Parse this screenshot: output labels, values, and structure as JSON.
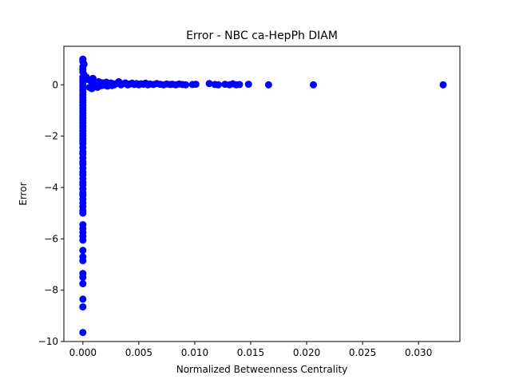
{
  "chart_data": {
    "type": "scatter",
    "title": "Error - NBC ca-HepPh DIAM",
    "xlabel": "Normalized Betweenness Centrality",
    "ylabel": "Error",
    "xlim": [
      -0.0017,
      0.0337
    ],
    "ylim": [
      -10,
      1.5
    ],
    "x_ticks": [
      {
        "value": 0.0,
        "label": "0.000"
      },
      {
        "value": 0.005,
        "label": "0.005"
      },
      {
        "value": 0.01,
        "label": "0.010"
      },
      {
        "value": 0.015,
        "label": "0.015"
      },
      {
        "value": 0.02,
        "label": "0.020"
      },
      {
        "value": 0.025,
        "label": "0.025"
      },
      {
        "value": 0.03,
        "label": "0.030"
      }
    ],
    "y_ticks": [
      {
        "value": 0,
        "label": "0"
      },
      {
        "value": -2,
        "label": "−2"
      },
      {
        "value": -4,
        "label": "−4"
      },
      {
        "value": -6,
        "label": "−6"
      },
      {
        "value": -8,
        "label": "−8"
      },
      {
        "value": -10,
        "label": "−10"
      }
    ],
    "grid": false,
    "legend": "none",
    "marker_color": "#0000ff",
    "series": [
      {
        "points": [
          [
            0.0,
            1.0
          ],
          [
            0.0,
            0.98
          ],
          [
            0.0,
            0.9
          ],
          [
            0.0001,
            0.8
          ],
          [
            0.0,
            0.7
          ],
          [
            0.0,
            0.6
          ],
          [
            0.0,
            0.5
          ],
          [
            0.0001,
            0.4
          ],
          [
            0.0,
            0.3
          ],
          [
            0.0,
            0.2
          ],
          [
            0.0,
            0.1
          ],
          [
            0.0,
            0.0
          ],
          [
            0.0,
            -0.1
          ],
          [
            0.0,
            -0.2
          ],
          [
            0.0,
            -0.3
          ],
          [
            0.0,
            -0.4
          ],
          [
            0.0,
            -0.5
          ],
          [
            0.0,
            -0.6
          ],
          [
            0.0,
            -0.7
          ],
          [
            0.0,
            -0.8
          ],
          [
            0.0,
            -0.9
          ],
          [
            0.0,
            -1.0
          ],
          [
            0.0,
            -1.1
          ],
          [
            0.0,
            -1.2
          ],
          [
            0.0,
            -1.3
          ],
          [
            0.0,
            -1.4
          ],
          [
            0.0,
            -1.5
          ],
          [
            0.0,
            -1.6
          ],
          [
            0.0,
            -1.7
          ],
          [
            0.0,
            -1.8
          ],
          [
            0.0,
            -1.9
          ],
          [
            0.0,
            -2.0
          ],
          [
            0.0,
            -2.1
          ],
          [
            0.0,
            -2.2
          ],
          [
            0.0,
            -2.3
          ],
          [
            0.0,
            -2.45
          ],
          [
            0.0,
            -2.6
          ],
          [
            0.0,
            -2.7
          ],
          [
            0.0,
            -2.85
          ],
          [
            0.0,
            -3.0
          ],
          [
            0.0,
            -3.1
          ],
          [
            0.0,
            -3.25
          ],
          [
            0.0,
            -3.4
          ],
          [
            0.0,
            -3.5
          ],
          [
            0.0,
            -3.65
          ],
          [
            0.0,
            -3.8
          ],
          [
            0.0,
            -3.9
          ],
          [
            0.0,
            -4.05
          ],
          [
            0.0,
            -4.2
          ],
          [
            0.0,
            -4.3
          ],
          [
            0.0,
            -4.45
          ],
          [
            0.0,
            -4.6
          ],
          [
            0.0,
            -4.75
          ],
          [
            0.0,
            -4.9
          ],
          [
            0.0,
            -5.0
          ],
          [
            0.0,
            -5.45
          ],
          [
            0.0,
            -5.6
          ],
          [
            0.0,
            -5.75
          ],
          [
            0.0,
            -5.9
          ],
          [
            0.0,
            -6.05
          ],
          [
            0.0,
            -6.45
          ],
          [
            0.0,
            -6.7
          ],
          [
            0.0,
            -6.85
          ],
          [
            0.0,
            -7.35
          ],
          [
            0.0,
            -7.5
          ],
          [
            0.0,
            -7.75
          ],
          [
            0.0,
            -8.35
          ],
          [
            0.0,
            -8.65
          ],
          [
            0.0,
            -9.65
          ],
          [
            0.0003,
            0.3
          ],
          [
            0.0005,
            0.2
          ],
          [
            0.0006,
            -0.1
          ],
          [
            0.0007,
            0.15
          ],
          [
            0.0008,
            -0.15
          ],
          [
            0.0009,
            0.25
          ],
          [
            0.001,
            0.05
          ],
          [
            0.0011,
            -0.05
          ],
          [
            0.0012,
            0.1
          ],
          [
            0.0013,
            -0.1
          ],
          [
            0.0014,
            0.12
          ],
          [
            0.0015,
            0.02
          ],
          [
            0.0016,
            -0.04
          ],
          [
            0.0017,
            0.08
          ],
          [
            0.0018,
            -0.02
          ],
          [
            0.0019,
            0.06
          ],
          [
            0.002,
            0.0
          ],
          [
            0.0021,
            0.1
          ],
          [
            0.0022,
            -0.05
          ],
          [
            0.0023,
            0.05
          ],
          [
            0.0024,
            0.0
          ],
          [
            0.0025,
            0.07
          ],
          [
            0.0026,
            -0.03
          ],
          [
            0.0027,
            0.04
          ],
          [
            0.0028,
            0.0
          ],
          [
            0.003,
            0.05
          ],
          [
            0.0032,
            0.12
          ],
          [
            0.0034,
            0.0
          ],
          [
            0.0036,
            0.04
          ],
          [
            0.0038,
            0.07
          ],
          [
            0.004,
            0.0
          ],
          [
            0.0042,
            0.03
          ],
          [
            0.0044,
            0.06
          ],
          [
            0.0046,
            0.01
          ],
          [
            0.0048,
            0.05
          ],
          [
            0.005,
            0.0
          ],
          [
            0.0052,
            0.04
          ],
          [
            0.0054,
            0.02
          ],
          [
            0.0056,
            0.06
          ],
          [
            0.0058,
            0.0
          ],
          [
            0.006,
            0.03
          ],
          [
            0.0063,
            0.01
          ],
          [
            0.0066,
            0.05
          ],
          [
            0.0069,
            0.02
          ],
          [
            0.0072,
            0.0
          ],
          [
            0.0075,
            0.03
          ],
          [
            0.0078,
            0.01
          ],
          [
            0.008,
            0.02
          ],
          [
            0.0083,
            0.0
          ],
          [
            0.0086,
            0.03
          ],
          [
            0.0089,
            0.01
          ],
          [
            0.0092,
            0.0
          ],
          [
            0.0098,
            0.01
          ],
          [
            0.0101,
            0.02
          ],
          [
            0.0113,
            0.05
          ],
          [
            0.0118,
            0.01
          ],
          [
            0.0121,
            0.0
          ],
          [
            0.0127,
            0.02
          ],
          [
            0.0131,
            0.0
          ],
          [
            0.0134,
            0.04
          ],
          [
            0.0137,
            0.0
          ],
          [
            0.014,
            0.01
          ],
          [
            0.0148,
            0.02
          ],
          [
            0.0166,
            0.0
          ],
          [
            0.0206,
            0.0
          ],
          [
            0.0322,
            0.0
          ]
        ]
      }
    ]
  }
}
